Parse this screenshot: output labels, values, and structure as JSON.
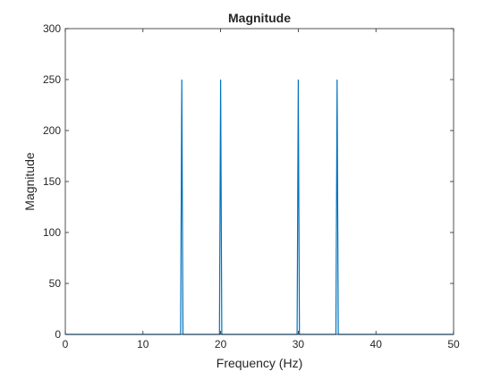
{
  "chart_data": {
    "type": "line",
    "title": "Magnitude",
    "xlabel": "Frequency (Hz)",
    "ylabel": "Magnitude",
    "xlim": [
      0,
      50
    ],
    "ylim": [
      0,
      300
    ],
    "xticks": [
      0,
      10,
      20,
      30,
      40,
      50
    ],
    "yticks": [
      0,
      50,
      100,
      150,
      200,
      250,
      300
    ],
    "grid": false,
    "legend": "none",
    "line_color": "#0072BD",
    "series": [
      {
        "x": [
          0,
          14.85,
          15,
          15.15,
          19.85,
          20,
          20.15,
          29.85,
          30,
          30.15,
          34.85,
          35,
          35.15,
          50
        ],
        "y": [
          0,
          0,
          250,
          0,
          0,
          250,
          0,
          0,
          250,
          0,
          0,
          250,
          0,
          0
        ]
      }
    ]
  }
}
